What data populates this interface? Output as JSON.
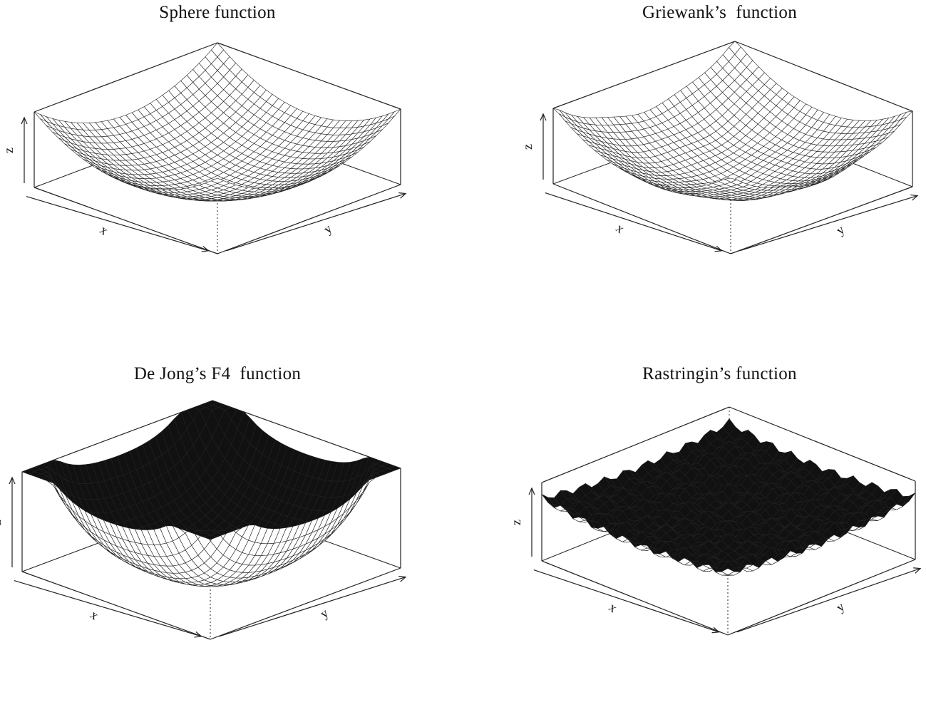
{
  "figure": {
    "panels": [
      {
        "id": "sphere",
        "title": "Sphere function"
      },
      {
        "id": "griewank",
        "title": "Griewank’s  function"
      },
      {
        "id": "dejong",
        "title": "De Jong’s F4  function"
      },
      {
        "id": "rastrigin",
        "title": "Rastringin’s function"
      }
    ]
  },
  "chart_data": [
    {
      "type": "surface",
      "title": "Sphere function",
      "xlabel": "x",
      "ylabel": "y",
      "zlabel": "z",
      "surface": "z = x^2 + y^2",
      "grid": "wireframe mesh, bowl-shaped, minimum at center"
    },
    {
      "type": "surface",
      "title": "Griewank’s  function",
      "xlabel": "x",
      "ylabel": "y",
      "zlabel": "z",
      "surface": "bowl-shaped with fine ripples",
      "grid": "wireframe mesh"
    },
    {
      "type": "surface",
      "title": "De Jong’s F4  function",
      "xlabel": "x",
      "ylabel": "y",
      "zlabel": "z",
      "surface": "quartic bowl, steep rise at far corner",
      "grid": "wireframe mesh with shaded back faces"
    },
    {
      "type": "surface",
      "title": "Rastringin’s function",
      "xlabel": "x",
      "ylabel": "y",
      "zlabel": "z",
      "surface": "multimodal egg-crate with many local minima",
      "grid": "wireframe mesh with shaded back faces"
    }
  ]
}
